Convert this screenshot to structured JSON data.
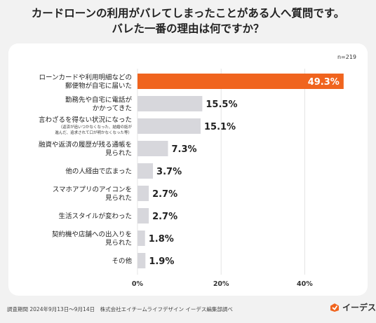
{
  "title_line1": "カードローンの利用がバレてしまったことがある人へ質問です。",
  "title_line2": "バレた一番の理由は何ですか？",
  "footer": "調査期間 2024年9月13日～9月14日　株式会社エイチームライフデザイン イーデス編集部調べ",
  "logo_text": "イーデス",
  "colors": {
    "highlight": "#f0641e",
    "bar": "#d7d7dc",
    "highlight_text": "#ffffff"
  },
  "chart_data": {
    "type": "bar",
    "orientation": "horizontal",
    "n_label": "n=219",
    "categories": [
      [
        "ローンカードや利用明細などの",
        "郵便物が自宅に届いた"
      ],
      [
        "勤務先や自宅に電話が",
        "かかってきた"
      ],
      [
        "言わざるを得ない状況になった"
      ],
      [
        "融資や返済の履歴が残る通帳を",
        "見られた"
      ],
      [
        "他の人経由で広まった"
      ],
      [
        "スマホアプリのアイコンを",
        "見られた"
      ],
      [
        "生活スタイルが変わった"
      ],
      [
        "契約機や店舗への出入りを",
        "見られた"
      ],
      [
        "その他"
      ]
    ],
    "notes": [
      null,
      null,
      [
        "（返済が追いつかなくなった、結婚の話が",
        "進んだ、追求されて口が明かなくなった等）"
      ],
      null,
      null,
      null,
      null,
      null,
      null
    ],
    "values": [
      49.3,
      15.5,
      15.1,
      7.3,
      3.7,
      2.7,
      2.7,
      1.8,
      1.9
    ],
    "value_labels": [
      "49.3%",
      "15.5%",
      "15.1%",
      "7.3%",
      "3.7%",
      "2.7%",
      "2.7%",
      "1.8%",
      "1.9%"
    ],
    "highlight_index": 0,
    "xlim": [
      0,
      50
    ],
    "xticks": [
      0,
      20,
      40
    ],
    "xtick_labels": [
      "0%",
      "20%",
      "40%"
    ]
  }
}
